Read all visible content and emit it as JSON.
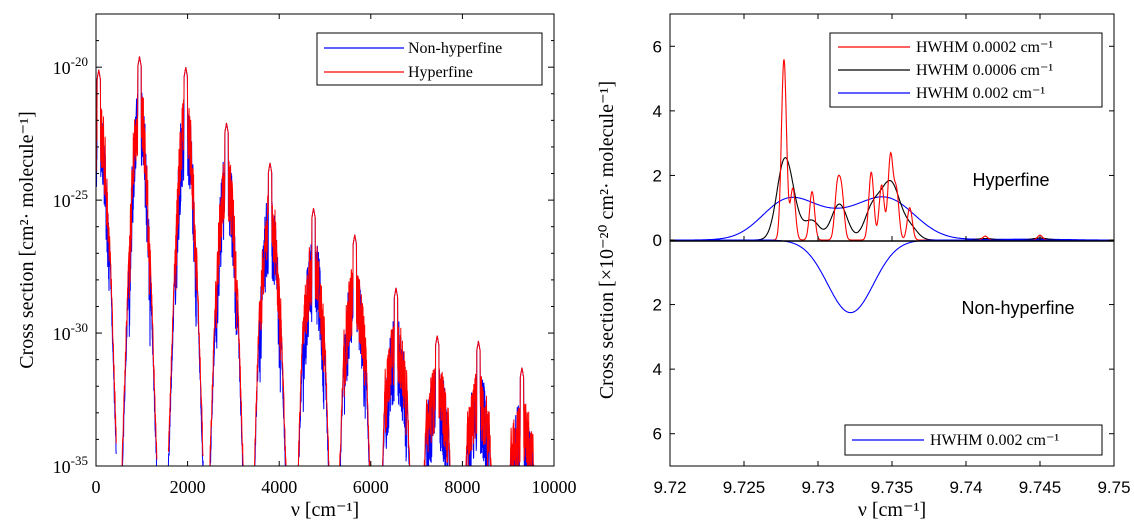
{
  "chart_data": [
    {
      "type": "line",
      "xlabel": "ν [cm⁻¹]",
      "ylabel": "Cross section [cm²· molecule⁻¹]",
      "xlim": [
        0,
        10000
      ],
      "ylim_exponent": [
        -35,
        -18
      ],
      "yscale": "log",
      "legend_position": "top-right",
      "x_ticks": [
        "0",
        "2000",
        "4000",
        "6000",
        "8000",
        "10000"
      ],
      "y_ticks": [
        {
          "base": "10",
          "exp": "-20",
          "value": -20
        },
        {
          "base": "10",
          "exp": "-25",
          "value": -25
        },
        {
          "base": "10",
          "exp": "-30",
          "value": -30
        },
        {
          "base": "10",
          "exp": "-35",
          "value": -35
        }
      ],
      "bands": [
        {
          "center": 60,
          "peak": -20.3,
          "shoulder": -25.5
        },
        {
          "center": 950,
          "peak": -19.8,
          "shoulder": -26.5
        },
        {
          "center": 1960,
          "peak": -20.2,
          "shoulder": -26.3
        },
        {
          "center": 2850,
          "peak": -22.3,
          "shoulder": -27.5
        },
        {
          "center": 3800,
          "peak": -23.8,
          "shoulder": -28.5
        },
        {
          "center": 4750,
          "peak": -25.5,
          "shoulder": -29.0
        },
        {
          "center": 5650,
          "peak": -26.5,
          "shoulder": -29.5
        },
        {
          "center": 6550,
          "peak": -28.5,
          "shoulder": -31.0
        },
        {
          "center": 7450,
          "peak": -30.3,
          "shoulder": -32.0
        },
        {
          "center": 8350,
          "peak": -30.5,
          "shoulder": -32.5
        },
        {
          "center": 9300,
          "peak": -31.5,
          "shoulder": -33.2
        }
      ],
      "series": [
        {
          "name": "Non-hyperfine",
          "color": "#0000ff"
        },
        {
          "name": "Hyperfine",
          "color": "#ff0000"
        }
      ]
    },
    {
      "type": "line",
      "xlabel": "ν [cm⁻¹]",
      "ylabel": "Cross section [×10⁻²⁰ cm²· molecule⁻¹]",
      "xlim": [
        9.72,
        9.75
      ],
      "ylim": [
        -7,
        7
      ],
      "x_ticks": [
        "9.72",
        "9.725",
        "9.73",
        "9.735",
        "9.74",
        "9.745",
        "9.75"
      ],
      "y_ticks_upper": [
        "0",
        "2",
        "4",
        "6"
      ],
      "y_ticks_lower": [
        "2",
        "4",
        "6"
      ],
      "annotations": {
        "upper": "Hyperfine",
        "lower": "Non-hyperfine"
      },
      "upper_lines": [
        {
          "x": 9.7277,
          "h": 5.6
        },
        {
          "x": 9.7283,
          "h": 1.6
        },
        {
          "x": 9.7296,
          "h": 1.5
        },
        {
          "x": 9.7313,
          "h": 1.55
        },
        {
          "x": 9.7316,
          "h": 1.4
        },
        {
          "x": 9.7336,
          "h": 2.1
        },
        {
          "x": 9.7343,
          "h": 1.7
        },
        {
          "x": 9.7349,
          "h": 2.6
        },
        {
          "x": 9.7353,
          "h": 1.5
        },
        {
          "x": 9.7362,
          "h": 1.0
        },
        {
          "x": 9.7413,
          "h": 0.12
        },
        {
          "x": 9.745,
          "h": 0.15
        }
      ],
      "series": [
        {
          "name": "HWHM 0.0002 cm⁻¹",
          "color": "#ff0000",
          "hwhm": 0.0002,
          "panel": "upper"
        },
        {
          "name": "HWHM 0.0006 cm⁻¹",
          "color": "#000000",
          "hwhm": 0.0006,
          "panel": "upper"
        },
        {
          "name": "HWHM 0.002 cm⁻¹",
          "color": "#0000ff",
          "hwhm": 0.002,
          "panel": "upper"
        },
        {
          "name": "HWHM 0.002 cm⁻¹",
          "color": "#0000ff",
          "panel": "lower",
          "center": 9.7322,
          "peak": 2.25,
          "width": 0.00155
        }
      ]
    }
  ]
}
